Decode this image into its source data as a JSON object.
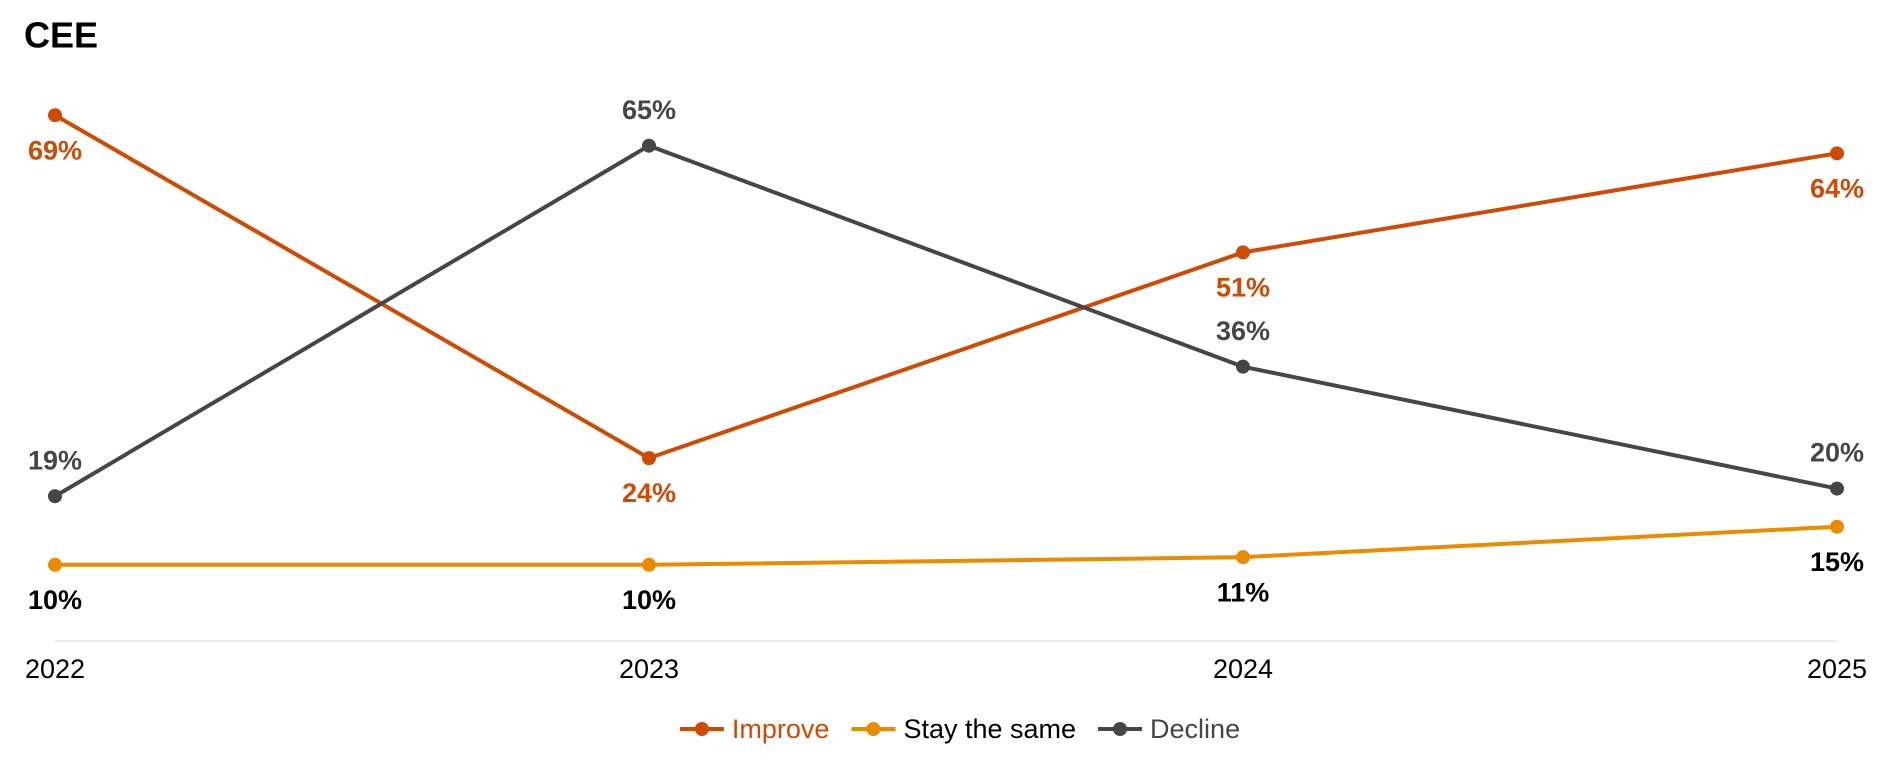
{
  "chart_data": {
    "type": "line",
    "title": "CEE",
    "categories": [
      "2022",
      "2023",
      "2024",
      "2025"
    ],
    "series": [
      {
        "name": "Improve",
        "color": "#d04a02",
        "values": [
          69,
          24,
          51,
          64
        ],
        "value_labels": [
          "69%",
          "24%",
          "51%",
          "64%"
        ]
      },
      {
        "name": "Stay the same",
        "color": "#eb8c00",
        "values": [
          10,
          10,
          11,
          15
        ],
        "value_labels": [
          "10%",
          "10%",
          "11%",
          "15%"
        ]
      },
      {
        "name": "Decline",
        "color": "#464646",
        "values": [
          19,
          65,
          36,
          20
        ],
        "value_labels": [
          "19%",
          "65%",
          "36%",
          "20%"
        ]
      }
    ],
    "legend": "bottom"
  }
}
